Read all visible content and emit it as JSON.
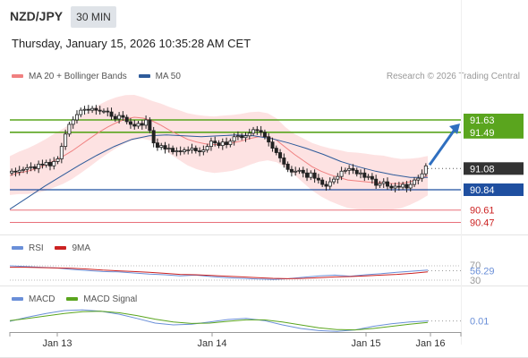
{
  "header": {
    "pair": "NZD/JPY",
    "timeframe": "30 MIN",
    "datetime": "Thursday, January 15, 2026 10:35:28 AM CET"
  },
  "legend": {
    "ma20_label": "MA 20 + Bollinger Bands",
    "ma50_label": "MA 50",
    "credit": "Research © 2026 Trading Central",
    "rsi_label": "RSI",
    "rsi_ma_label": "9MA",
    "macd_label": "MACD",
    "macd_signal_label": "MACD Signal"
  },
  "colors": {
    "ma20": "#f08080",
    "ma50": "#2e5b9a",
    "bollinger_fill": "#fde2e2",
    "resistance": "#5aa51e",
    "support": "#1f4fa0",
    "support_low": "#e8707a",
    "last_price": "#333333",
    "arrow": "#2f6fc0",
    "rsi": "#6a8fd8",
    "rsi_ma": "#cc2222",
    "macd": "#6a8fd8",
    "macd_signal": "#5aa51e"
  },
  "chart_data": [
    {
      "type": "candlestick",
      "title": "NZD/JPY",
      "x_ticks": [
        "Jan 13",
        "Jan 14",
        "Jan 15",
        "Jan 16"
      ],
      "ylim": [
        90.3,
        92.0
      ],
      "levels": {
        "resistance": [
          91.63,
          91.49
        ],
        "last": 91.08,
        "support": [
          90.84
        ],
        "support_low": [
          90.61,
          90.47
        ]
      },
      "ohlc_close": [
        91.05,
        91.04,
        91.06,
        91.07,
        91.09,
        91.1,
        91.08,
        91.13,
        91.12,
        91.15,
        91.11,
        91.16,
        91.19,
        91.33,
        91.47,
        91.58,
        91.63,
        91.69,
        91.74,
        91.75,
        91.74,
        91.76,
        91.74,
        91.73,
        91.73,
        91.72,
        91.67,
        91.64,
        91.68,
        91.66,
        91.61,
        91.58,
        91.56,
        91.59,
        91.57,
        91.63,
        91.51,
        91.37,
        91.32,
        91.34,
        91.3,
        91.31,
        91.27,
        91.28,
        91.27,
        91.29,
        91.29,
        91.31,
        91.28,
        91.27,
        91.29,
        91.33,
        91.39,
        91.37,
        91.34,
        91.38,
        91.35,
        91.39,
        91.44,
        91.45,
        91.43,
        91.45,
        91.48,
        91.52,
        91.51,
        91.49,
        91.44,
        91.38,
        91.31,
        91.26,
        91.2,
        91.13,
        91.07,
        91.04,
        91.05,
        91.06,
        91.03,
        90.98,
        91.03,
        90.97,
        90.95,
        90.9,
        90.88,
        90.93,
        90.96,
        90.99,
        91.05,
        91.06,
        91.08,
        91.06,
        91.02,
        91.03,
        90.98,
        90.99,
        90.96,
        90.89,
        90.91,
        90.93,
        90.88,
        90.86,
        90.88,
        90.87,
        90.9,
        90.86,
        90.9,
        90.95,
        90.97,
        91.02,
        91.11
      ],
      "ma20": [
        91.0,
        91.03,
        91.05,
        91.08,
        91.12,
        91.17,
        91.22,
        91.28,
        91.35,
        91.42,
        91.49,
        91.55,
        91.6,
        91.64,
        91.66,
        91.65,
        91.62,
        91.57,
        91.51,
        91.46,
        91.41,
        91.38,
        91.36,
        91.35,
        91.36,
        91.37,
        91.39,
        91.42,
        91.44,
        91.44,
        91.4,
        91.32,
        91.24,
        91.17,
        91.1,
        91.05,
        91.01,
        90.98,
        90.95,
        90.94,
        90.93,
        90.92,
        90.92,
        90.91,
        90.91,
        90.93,
        90.96,
        91.0
      ],
      "ma50": [
        90.62,
        90.75,
        90.88,
        91.0,
        91.12,
        91.23,
        91.33,
        91.41,
        91.45,
        91.46,
        91.45,
        91.44,
        91.45,
        91.46,
        91.45,
        91.42,
        91.37,
        91.31,
        91.24,
        91.16,
        91.1,
        91.05,
        91.01,
        90.98,
        90.98
      ]
    },
    {
      "type": "line",
      "title": "RSI",
      "ylim": [
        30,
        70
      ],
      "y_ticks": [
        30,
        70
      ],
      "last": 56.29,
      "series": [
        {
          "name": "RSI",
          "values": [
            70,
            68,
            66,
            64,
            60,
            57,
            54,
            53,
            50,
            47,
            45,
            42,
            44,
            40,
            37,
            35,
            33,
            32,
            34,
            38,
            42,
            44,
            41,
            45,
            48,
            52,
            55,
            58
          ]
        },
        {
          "name": "9MA",
          "values": [
            66,
            66,
            65,
            64,
            63,
            61,
            58,
            56,
            54,
            52,
            49,
            46,
            45,
            43,
            41,
            39,
            37,
            35,
            34,
            35,
            37,
            39,
            40,
            42,
            44,
            46,
            49,
            53
          ]
        }
      ]
    },
    {
      "type": "line",
      "title": "MACD",
      "last": 0.01,
      "series": [
        {
          "name": "MACD",
          "values": [
            0.0,
            0.12,
            0.22,
            0.3,
            0.32,
            0.28,
            0.2,
            0.08,
            -0.05,
            -0.1,
            -0.08,
            -0.02,
            0.05,
            0.08,
            0.02,
            -0.1,
            -0.2,
            -0.26,
            -0.28,
            -0.24,
            -0.14,
            -0.07,
            -0.02,
            0.01
          ]
        },
        {
          "name": "MACD Signal",
          "values": [
            0.02,
            0.08,
            0.15,
            0.22,
            0.27,
            0.28,
            0.24,
            0.16,
            0.06,
            -0.02,
            -0.06,
            -0.05,
            0.0,
            0.04,
            0.04,
            -0.02,
            -0.1,
            -0.18,
            -0.23,
            -0.24,
            -0.2,
            -0.14,
            -0.08,
            -0.03
          ]
        }
      ]
    }
  ],
  "price_tags": [
    "91.63",
    "91.49",
    "91.08",
    "90.84",
    "90.61",
    "90.47"
  ],
  "rsi_tags": [
    "70",
    "56.29",
    "30"
  ],
  "macd_tags": [
    "0.01"
  ]
}
